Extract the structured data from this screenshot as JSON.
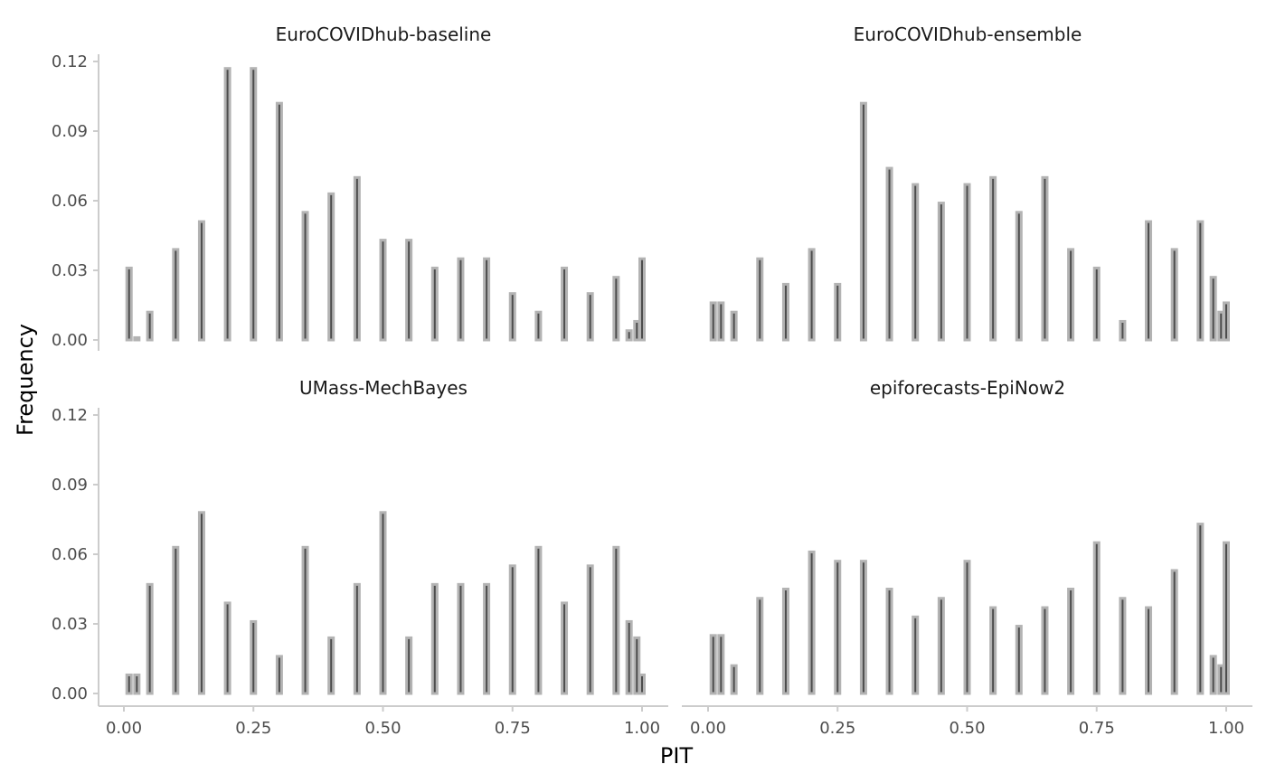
{
  "chart_data": {
    "type": "bar",
    "xlabel": "PIT",
    "ylabel": "Frequency",
    "x_ticks": [
      "0.00",
      "0.25",
      "0.50",
      "0.75",
      "1.00"
    ],
    "y_ticks": [
      "0.00",
      "0.03",
      "0.06",
      "0.09",
      "0.12"
    ],
    "xlim": [
      -0.05,
      1.05
    ],
    "ylim": [
      -0.004,
      0.122
    ],
    "grid": false,
    "legend": "none",
    "colors": {
      "bar_fill": "#4d4d4d",
      "bar_outline": "#b3b3b3",
      "axis": "#cccccc"
    },
    "panels": [
      {
        "title": "EuroCOVIDhub-baseline",
        "bars": [
          {
            "x": 0.01,
            "y": 0.031
          },
          {
            "x": 0.025,
            "y": 0.001
          },
          {
            "x": 0.05,
            "y": 0.012
          },
          {
            "x": 0.1,
            "y": 0.039
          },
          {
            "x": 0.15,
            "y": 0.051
          },
          {
            "x": 0.2,
            "y": 0.117
          },
          {
            "x": 0.25,
            "y": 0.117
          },
          {
            "x": 0.3,
            "y": 0.102
          },
          {
            "x": 0.35,
            "y": 0.055
          },
          {
            "x": 0.4,
            "y": 0.063
          },
          {
            "x": 0.45,
            "y": 0.07
          },
          {
            "x": 0.5,
            "y": 0.043
          },
          {
            "x": 0.55,
            "y": 0.043
          },
          {
            "x": 0.6,
            "y": 0.031
          },
          {
            "x": 0.65,
            "y": 0.035
          },
          {
            "x": 0.7,
            "y": 0.035
          },
          {
            "x": 0.75,
            "y": 0.02
          },
          {
            "x": 0.8,
            "y": 0.012
          },
          {
            "x": 0.85,
            "y": 0.031
          },
          {
            "x": 0.9,
            "y": 0.02
          },
          {
            "x": 0.95,
            "y": 0.027
          },
          {
            "x": 0.975,
            "y": 0.004
          },
          {
            "x": 0.99,
            "y": 0.008
          },
          {
            "x": 1.0,
            "y": 0.035
          }
        ]
      },
      {
        "title": "EuroCOVIDhub-ensemble",
        "bars": [
          {
            "x": 0.01,
            "y": 0.016
          },
          {
            "x": 0.025,
            "y": 0.016
          },
          {
            "x": 0.05,
            "y": 0.012
          },
          {
            "x": 0.1,
            "y": 0.035
          },
          {
            "x": 0.15,
            "y": 0.024
          },
          {
            "x": 0.2,
            "y": 0.039
          },
          {
            "x": 0.25,
            "y": 0.024
          },
          {
            "x": 0.3,
            "y": 0.102
          },
          {
            "x": 0.35,
            "y": 0.074
          },
          {
            "x": 0.4,
            "y": 0.067
          },
          {
            "x": 0.45,
            "y": 0.059
          },
          {
            "x": 0.5,
            "y": 0.067
          },
          {
            "x": 0.55,
            "y": 0.07
          },
          {
            "x": 0.6,
            "y": 0.055
          },
          {
            "x": 0.65,
            "y": 0.07
          },
          {
            "x": 0.7,
            "y": 0.039
          },
          {
            "x": 0.75,
            "y": 0.031
          },
          {
            "x": 0.8,
            "y": 0.008
          },
          {
            "x": 0.85,
            "y": 0.051
          },
          {
            "x": 0.9,
            "y": 0.039
          },
          {
            "x": 0.95,
            "y": 0.051
          },
          {
            "x": 0.975,
            "y": 0.027
          },
          {
            "x": 0.99,
            "y": 0.012
          },
          {
            "x": 1.0,
            "y": 0.016
          }
        ]
      },
      {
        "title": "UMass-MechBayes",
        "bars": [
          {
            "x": 0.01,
            "y": 0.008
          },
          {
            "x": 0.025,
            "y": 0.008
          },
          {
            "x": 0.05,
            "y": 0.047
          },
          {
            "x": 0.1,
            "y": 0.063
          },
          {
            "x": 0.15,
            "y": 0.078
          },
          {
            "x": 0.2,
            "y": 0.039
          },
          {
            "x": 0.25,
            "y": 0.031
          },
          {
            "x": 0.3,
            "y": 0.016
          },
          {
            "x": 0.35,
            "y": 0.063
          },
          {
            "x": 0.4,
            "y": 0.024
          },
          {
            "x": 0.45,
            "y": 0.047
          },
          {
            "x": 0.5,
            "y": 0.078
          },
          {
            "x": 0.55,
            "y": 0.024
          },
          {
            "x": 0.6,
            "y": 0.047
          },
          {
            "x": 0.65,
            "y": 0.047
          },
          {
            "x": 0.7,
            "y": 0.047
          },
          {
            "x": 0.75,
            "y": 0.055
          },
          {
            "x": 0.8,
            "y": 0.063
          },
          {
            "x": 0.85,
            "y": 0.039
          },
          {
            "x": 0.9,
            "y": 0.055
          },
          {
            "x": 0.95,
            "y": 0.063
          },
          {
            "x": 0.975,
            "y": 0.031
          },
          {
            "x": 0.99,
            "y": 0.024
          },
          {
            "x": 1.0,
            "y": 0.008
          }
        ]
      },
      {
        "title": "epiforecasts-EpiNow2",
        "bars": [
          {
            "x": 0.01,
            "y": 0.025
          },
          {
            "x": 0.025,
            "y": 0.025
          },
          {
            "x": 0.05,
            "y": 0.012
          },
          {
            "x": 0.1,
            "y": 0.041
          },
          {
            "x": 0.15,
            "y": 0.045
          },
          {
            "x": 0.2,
            "y": 0.061
          },
          {
            "x": 0.25,
            "y": 0.057
          },
          {
            "x": 0.3,
            "y": 0.057
          },
          {
            "x": 0.35,
            "y": 0.045
          },
          {
            "x": 0.4,
            "y": 0.033
          },
          {
            "x": 0.45,
            "y": 0.041
          },
          {
            "x": 0.5,
            "y": 0.057
          },
          {
            "x": 0.55,
            "y": 0.037
          },
          {
            "x": 0.6,
            "y": 0.029
          },
          {
            "x": 0.65,
            "y": 0.037
          },
          {
            "x": 0.7,
            "y": 0.045
          },
          {
            "x": 0.75,
            "y": 0.065
          },
          {
            "x": 0.8,
            "y": 0.041
          },
          {
            "x": 0.85,
            "y": 0.037
          },
          {
            "x": 0.9,
            "y": 0.053
          },
          {
            "x": 0.95,
            "y": 0.073
          },
          {
            "x": 0.975,
            "y": 0.016
          },
          {
            "x": 0.99,
            "y": 0.012
          },
          {
            "x": 1.0,
            "y": 0.065
          }
        ]
      }
    ]
  }
}
